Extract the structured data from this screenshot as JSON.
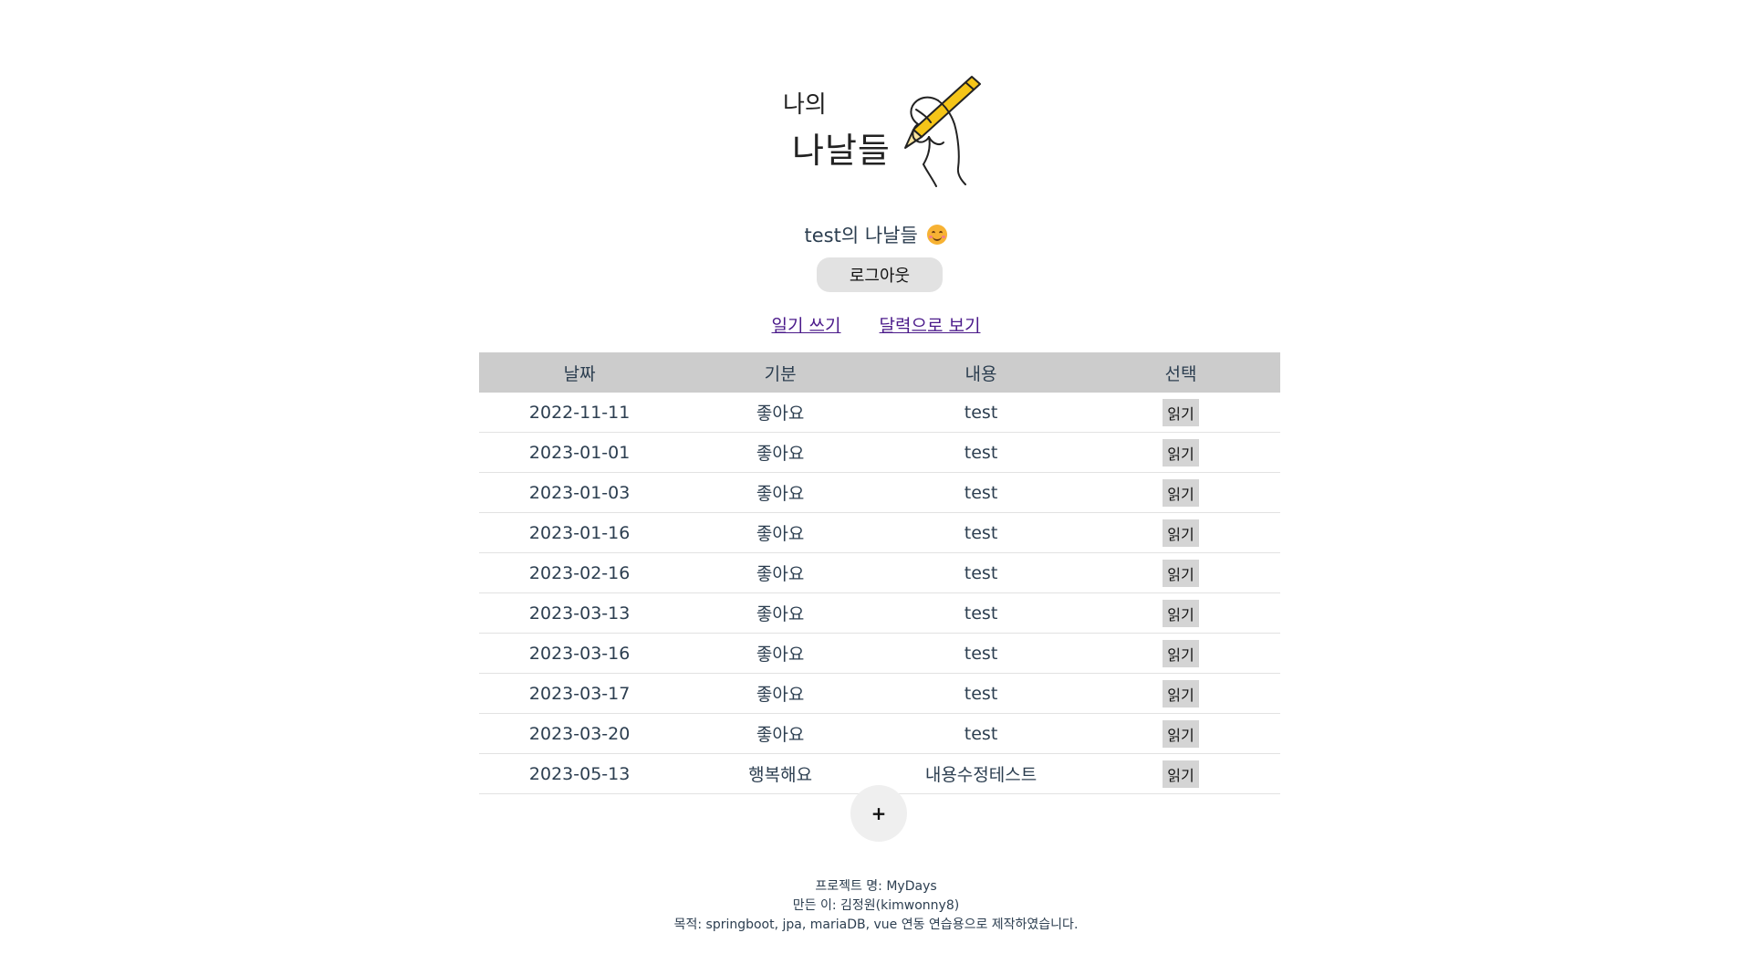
{
  "logo": {
    "line1": "나의",
    "line2": "나날들"
  },
  "greeting": {
    "text": "test의 나날들",
    "emoji": "smiling-face-icon"
  },
  "logout": {
    "label": "로그아웃"
  },
  "nav": {
    "write_label": "일기 쓰기",
    "calendar_label": "달력으로 보기"
  },
  "table": {
    "headers": [
      "날짜",
      "기분",
      "내용",
      "선택"
    ],
    "rows": [
      {
        "date": "2022-11-11",
        "mood": "좋아요",
        "content": "test",
        "action": "읽기"
      },
      {
        "date": "2023-01-01",
        "mood": "좋아요",
        "content": "test",
        "action": "읽기"
      },
      {
        "date": "2023-01-03",
        "mood": "좋아요",
        "content": "test",
        "action": "읽기"
      },
      {
        "date": "2023-01-16",
        "mood": "좋아요",
        "content": "test",
        "action": "읽기"
      },
      {
        "date": "2023-02-16",
        "mood": "좋아요",
        "content": "test",
        "action": "읽기"
      },
      {
        "date": "2023-03-13",
        "mood": "좋아요",
        "content": "test",
        "action": "읽기"
      },
      {
        "date": "2023-03-16",
        "mood": "좋아요",
        "content": "test",
        "action": "읽기"
      },
      {
        "date": "2023-03-17",
        "mood": "좋아요",
        "content": "test",
        "action": "읽기"
      },
      {
        "date": "2023-03-20",
        "mood": "좋아요",
        "content": "test",
        "action": "읽기"
      },
      {
        "date": "2023-05-13",
        "mood": "행복해요",
        "content": "내용수정테스트",
        "action": "읽기"
      }
    ]
  },
  "plus": {
    "label": "+"
  },
  "footer": {
    "project": "프로젝트 명: MyDays",
    "author": "만든 이: 김정원(kimwonny8)",
    "purpose": "목적: springboot, jpa, mariaDB, vue 연동 연습용으로 제작하였습니다."
  },
  "colors": {
    "header_bg": "#cccccc",
    "link": "#4b1a8a",
    "button_bg": "#e2e2e2",
    "pencil": "#f5c518"
  }
}
